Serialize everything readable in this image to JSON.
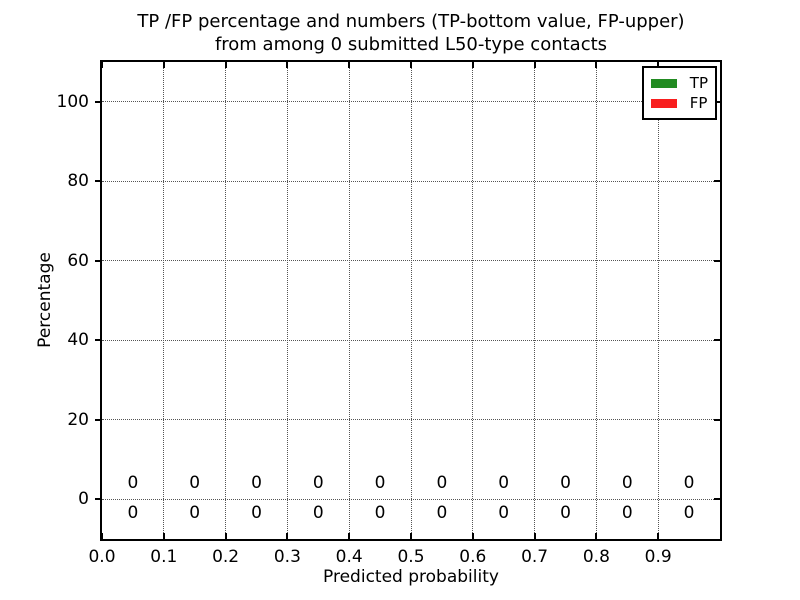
{
  "chart_data": {
    "type": "bar",
    "title_line1": "TP /FP percentage and numbers (TP-bottom value, FP-upper)",
    "title_line2": "from among 0 submitted L50-type contacts",
    "xlabel": "Predicted probability",
    "ylabel": "Percentage",
    "xlim": [
      0.0,
      1.0
    ],
    "ylim": [
      -10,
      110
    ],
    "grid": true,
    "x_ticks": [
      {
        "v": 0.0,
        "label": "0.0"
      },
      {
        "v": 0.1,
        "label": "0.1"
      },
      {
        "v": 0.2,
        "label": "0.2"
      },
      {
        "v": 0.3,
        "label": "0.3"
      },
      {
        "v": 0.4,
        "label": "0.4"
      },
      {
        "v": 0.5,
        "label": "0.5"
      },
      {
        "v": 0.6,
        "label": "0.6"
      },
      {
        "v": 0.7,
        "label": "0.7"
      },
      {
        "v": 0.8,
        "label": "0.8"
      },
      {
        "v": 0.9,
        "label": "0.9"
      }
    ],
    "y_ticks": [
      {
        "v": 0,
        "label": "0"
      },
      {
        "v": 20,
        "label": "20"
      },
      {
        "v": 40,
        "label": "40"
      },
      {
        "v": 60,
        "label": "60"
      },
      {
        "v": 80,
        "label": "80"
      },
      {
        "v": 100,
        "label": "100"
      }
    ],
    "bins": [
      0.05,
      0.15,
      0.25,
      0.35,
      0.45,
      0.55,
      0.65,
      0.75,
      0.85,
      0.95
    ],
    "series": [
      {
        "name": "TP",
        "color": "#228B22",
        "count_row": "bottom",
        "percent": [
          0,
          0,
          0,
          0,
          0,
          0,
          0,
          0,
          0,
          0
        ],
        "counts": [
          0,
          0,
          0,
          0,
          0,
          0,
          0,
          0,
          0,
          0
        ]
      },
      {
        "name": "FP",
        "color": "#f81e1e",
        "count_row": "upper",
        "percent": [
          0,
          0,
          0,
          0,
          0,
          0,
          0,
          0,
          0,
          0
        ],
        "counts": [
          0,
          0,
          0,
          0,
          0,
          0,
          0,
          0,
          0,
          0
        ]
      }
    ],
    "legend": {
      "position": "upper right",
      "entries": [
        {
          "label": "TP",
          "color": "#228B22"
        },
        {
          "label": "FP",
          "color": "#f81e1e"
        }
      ]
    }
  }
}
